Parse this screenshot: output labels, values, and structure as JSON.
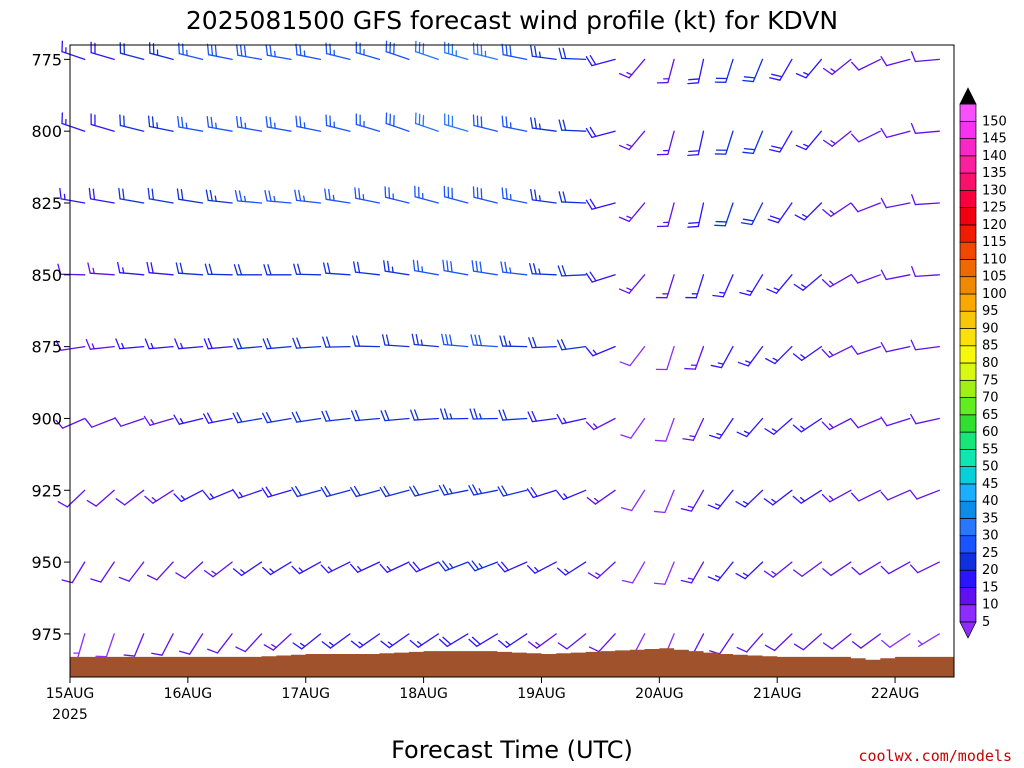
{
  "chart_data": {
    "type": "wind-barb-profile",
    "title": "2025081500 GFS forecast wind profile (kt) for KDVN",
    "xlabel": "Forecast Time (UTC)",
    "credit": "coolwx.com/models",
    "y_axis": {
      "quantity": "pressure (hPa)",
      "inverted": true,
      "range": [
        990,
        770
      ],
      "ticks": [
        775,
        800,
        825,
        850,
        875,
        900,
        925,
        950,
        975
      ]
    },
    "x_axis": {
      "range_hours": [
        0,
        180
      ],
      "tick_labels": [
        {
          "label": "15AUG",
          "sub": "2025",
          "hour": 0
        },
        {
          "label": "16AUG",
          "sub": "",
          "hour": 24
        },
        {
          "label": "17AUG",
          "sub": "",
          "hour": 48
        },
        {
          "label": "18AUG",
          "sub": "",
          "hour": 72
        },
        {
          "label": "19AUG",
          "sub": "",
          "hour": 96
        },
        {
          "label": "20AUG",
          "sub": "",
          "hour": 120
        },
        {
          "label": "21AUG",
          "sub": "",
          "hour": 144
        },
        {
          "label": "22AUG",
          "sub": "",
          "hour": 168
        }
      ]
    },
    "levels": [
      775,
      800,
      825,
      850,
      875,
      900,
      925,
      950,
      975
    ],
    "surface_pressure": {
      "hours": [
        0,
        24,
        36,
        48,
        60,
        72,
        84,
        96,
        108,
        120,
        132,
        144,
        156,
        162,
        168,
        180
      ],
      "pressure": [
        983,
        983,
        983,
        982,
        982,
        981,
        981,
        982,
        981,
        980,
        982,
        983,
        983,
        984,
        983,
        983
      ]
    },
    "wind_series": [
      {
        "name": "775",
        "hours": [
          0,
          12,
          24,
          36,
          48,
          60,
          72,
          84,
          96,
          108,
          114,
          120,
          126,
          132,
          144,
          156,
          168,
          180
        ],
        "dir_deg": [
          290,
          285,
          285,
          280,
          280,
          285,
          290,
          285,
          280,
          270,
          240,
          200,
          190,
          195,
          205,
          225,
          250,
          270
        ],
        "speed_kt": [
          15,
          20,
          25,
          30,
          25,
          25,
          30,
          35,
          25,
          20,
          15,
          10,
          15,
          20,
          20,
          15,
          10,
          10
        ]
      },
      {
        "name": "800",
        "hours": [
          0,
          12,
          24,
          36,
          48,
          60,
          72,
          84,
          96,
          108,
          114,
          120,
          126,
          132,
          144,
          156,
          168,
          180
        ],
        "dir_deg": [
          290,
          285,
          280,
          280,
          280,
          285,
          290,
          285,
          280,
          270,
          240,
          200,
          190,
          195,
          205,
          225,
          250,
          270
        ],
        "speed_kt": [
          15,
          20,
          25,
          25,
          25,
          25,
          30,
          30,
          25,
          20,
          15,
          10,
          15,
          20,
          20,
          15,
          10,
          10
        ]
      },
      {
        "name": "825",
        "hours": [
          0,
          12,
          24,
          36,
          48,
          60,
          72,
          84,
          96,
          108,
          114,
          120,
          126,
          132,
          144,
          156,
          168,
          180
        ],
        "dir_deg": [
          280,
          280,
          280,
          275,
          275,
          280,
          285,
          285,
          280,
          270,
          240,
          200,
          190,
          195,
          210,
          230,
          255,
          270
        ],
        "speed_kt": [
          15,
          20,
          20,
          25,
          25,
          25,
          25,
          30,
          25,
          20,
          15,
          10,
          15,
          20,
          20,
          15,
          10,
          10
        ]
      },
      {
        "name": "850",
        "hours": [
          0,
          12,
          24,
          36,
          48,
          60,
          72,
          84,
          96,
          108,
          114,
          120,
          126,
          132,
          144,
          156,
          168,
          180
        ],
        "dir_deg": [
          270,
          275,
          275,
          270,
          270,
          275,
          280,
          280,
          275,
          265,
          240,
          200,
          195,
          200,
          215,
          235,
          255,
          270
        ],
        "speed_kt": [
          10,
          15,
          20,
          20,
          20,
          20,
          25,
          30,
          25,
          20,
          15,
          10,
          15,
          15,
          15,
          15,
          10,
          10
        ]
      },
      {
        "name": "875",
        "hours": [
          0,
          12,
          24,
          36,
          48,
          60,
          72,
          84,
          96,
          108,
          114,
          120,
          126,
          132,
          144,
          156,
          168,
          180
        ],
        "dir_deg": [
          260,
          265,
          265,
          265,
          265,
          270,
          275,
          275,
          270,
          260,
          235,
          200,
          195,
          205,
          220,
          240,
          255,
          265
        ],
        "speed_kt": [
          10,
          15,
          15,
          20,
          20,
          20,
          20,
          30,
          20,
          20,
          10,
          5,
          10,
          15,
          15,
          15,
          10,
          10
        ]
      },
      {
        "name": "900",
        "hours": [
          0,
          12,
          24,
          36,
          48,
          60,
          72,
          84,
          96,
          108,
          114,
          120,
          126,
          132,
          144,
          156,
          168,
          180
        ],
        "dir_deg": [
          245,
          250,
          255,
          260,
          260,
          265,
          265,
          270,
          265,
          255,
          230,
          200,
          200,
          210,
          225,
          240,
          250,
          260
        ],
        "speed_kt": [
          10,
          10,
          15,
          20,
          20,
          20,
          20,
          25,
          20,
          15,
          10,
          5,
          10,
          15,
          15,
          15,
          10,
          10
        ]
      },
      {
        "name": "925",
        "hours": [
          0,
          12,
          24,
          36,
          48,
          60,
          72,
          84,
          96,
          108,
          114,
          120,
          126,
          132,
          144,
          156,
          168,
          180
        ],
        "dir_deg": [
          225,
          230,
          240,
          250,
          255,
          255,
          255,
          260,
          255,
          245,
          225,
          200,
          205,
          215,
          230,
          240,
          245,
          250
        ],
        "speed_kt": [
          10,
          10,
          15,
          15,
          20,
          20,
          20,
          25,
          20,
          15,
          10,
          5,
          10,
          15,
          15,
          15,
          10,
          10
        ]
      },
      {
        "name": "950",
        "hours": [
          0,
          12,
          24,
          36,
          48,
          60,
          72,
          84,
          96,
          108,
          114,
          120,
          126,
          132,
          144,
          156,
          168,
          180
        ],
        "dir_deg": [
          210,
          215,
          225,
          235,
          240,
          245,
          245,
          250,
          245,
          235,
          220,
          200,
          205,
          215,
          230,
          235,
          240,
          245
        ],
        "speed_kt": [
          10,
          10,
          10,
          15,
          15,
          15,
          15,
          25,
          15,
          15,
          10,
          5,
          10,
          15,
          15,
          10,
          10,
          10
        ]
      },
      {
        "name": "975",
        "hours": [
          0,
          12,
          24,
          36,
          48,
          60,
          72,
          84,
          96,
          108,
          114,
          120,
          126,
          132,
          144,
          156,
          168,
          180
        ],
        "dir_deg": [
          195,
          200,
          210,
          220,
          230,
          235,
          235,
          240,
          235,
          230,
          215,
          200,
          205,
          210,
          225,
          230,
          235,
          240
        ],
        "speed_kt": [
          5,
          10,
          10,
          10,
          15,
          15,
          15,
          20,
          15,
          10,
          10,
          5,
          10,
          10,
          10,
          10,
          10,
          5
        ]
      }
    ],
    "colorbar": {
      "values": [
        5,
        10,
        15,
        20,
        25,
        30,
        35,
        40,
        45,
        50,
        55,
        60,
        65,
        70,
        75,
        80,
        85,
        90,
        95,
        100,
        105,
        110,
        115,
        120,
        125,
        130,
        135,
        140,
        145,
        150
      ],
      "colors": [
        "#8c2cff",
        "#6010f0",
        "#2c14ff",
        "#1030e0",
        "#1854ff",
        "#2878ff",
        "#0c8ce8",
        "#18b0ff",
        "#08d0d8",
        "#10e6b0",
        "#18e678",
        "#30e030",
        "#60ee20",
        "#a0f018",
        "#d8f814",
        "#f8f80c",
        "#f8e008",
        "#f8c808",
        "#f8a800",
        "#f08800",
        "#f06800",
        "#f04800",
        "#f01c00",
        "#f00010",
        "#f80040",
        "#f8106c",
        "#f8209c",
        "#f828c8",
        "#f830f0",
        "#f850ff"
      ]
    },
    "colors": {
      "terrain": "#a0522d",
      "plot_frame": "#000000"
    }
  }
}
